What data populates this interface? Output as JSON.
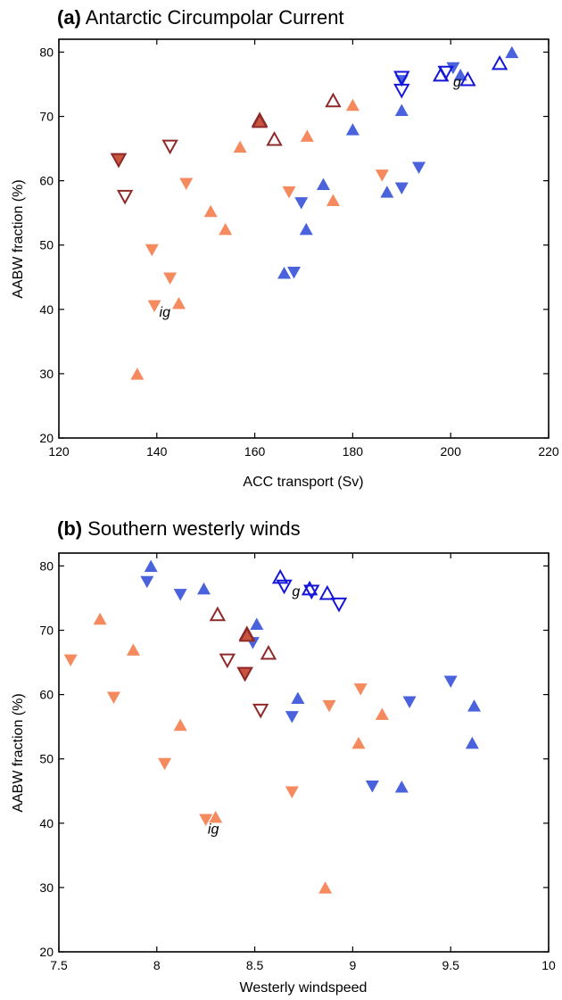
{
  "colors": {
    "orange": "#f58a5f",
    "blue_filled": "#4a63dc",
    "blue_open": "#1515d8",
    "darkred": "#8f2a2a",
    "darkred_fill": "#c8553e"
  },
  "chart_data": [
    {
      "type": "scatter",
      "panel_label": "(a)",
      "title": "Antarctic Circumpolar Current",
      "xlabel": "ACC transport (Sv)",
      "ylabel": "AABW fraction (%)",
      "xlim": [
        120,
        220
      ],
      "ylim": [
        20,
        82
      ],
      "xticks": [
        "120",
        "140",
        "160",
        "180",
        "200",
        "220"
      ],
      "yticks": [
        "20",
        "30",
        "40",
        "50",
        "60",
        "70",
        "80"
      ],
      "grid": false,
      "annotations": [
        {
          "text": "ig",
          "x": 140.5,
          "y": 39.7
        },
        {
          "text": "g",
          "x": 200.5,
          "y": 75.5
        }
      ],
      "series": [
        {
          "marker": "triangle-up",
          "fill": "orange",
          "points": [
            [
              136,
              30
            ],
            [
              144.5,
              41
            ],
            [
              151,
              55.3
            ],
            [
              154,
              52.5
            ],
            [
              157,
              65.3
            ],
            [
              170.7,
              67
            ],
            [
              176,
              57
            ],
            [
              180,
              71.8
            ]
          ]
        },
        {
          "marker": "triangle-down",
          "fill": "orange",
          "points": [
            [
              139,
              49.2
            ],
            [
              139.5,
              40.5
            ],
            [
              142.7,
              44.8
            ],
            [
              146,
              59.5
            ],
            [
              167,
              58.2
            ],
            [
              186,
              60.8
            ]
          ]
        },
        {
          "marker": "triangle-up",
          "fill": "blue_filled",
          "points": [
            [
              166,
              45.7
            ],
            [
              170.5,
              52.5
            ],
            [
              174,
              59.5
            ],
            [
              180,
              68
            ],
            [
              187,
              58.3
            ],
            [
              190,
              71
            ],
            [
              202,
              76.5
            ],
            [
              212.5,
              80
            ]
          ]
        },
        {
          "marker": "triangle-down",
          "fill": "blue_filled",
          "points": [
            [
              168,
              45.7
            ],
            [
              169.5,
              56.5
            ],
            [
              190,
              58.8
            ],
            [
              193.5,
              62
            ],
            [
              190,
              75.5
            ],
            [
              200.5,
              77.5
            ]
          ]
        },
        {
          "marker": "triangle-up",
          "fill": "none",
          "stroke": "blue_open",
          "points": [
            [
              198,
              76.5
            ],
            [
              203.5,
              75.8
            ],
            [
              210,
              78.3
            ]
          ]
        },
        {
          "marker": "triangle-down",
          "fill": "none",
          "stroke": "blue_open",
          "points": [
            [
              190,
              76
            ],
            [
              190,
              74
            ],
            [
              199,
              76.8
            ]
          ]
        },
        {
          "marker": "triangle-up",
          "fill": "none",
          "stroke": "darkred",
          "points": [
            [
              161,
              69.5
            ],
            [
              164,
              66.5
            ],
            [
              176,
              72.5
            ]
          ]
        },
        {
          "marker": "triangle-down",
          "fill": "none",
          "stroke": "darkred",
          "points": [
            [
              132.2,
              63.2
            ],
            [
              133.5,
              57.5
            ],
            [
              142.7,
              65.3
            ]
          ]
        },
        {
          "marker": "triangle-up",
          "fill": "darkred_fill",
          "stroke": "darkred",
          "points": [
            [
              161,
              69.3
            ]
          ]
        },
        {
          "marker": "triangle-down",
          "fill": "darkred_fill",
          "stroke": "darkred",
          "points": [
            [
              132.2,
              63.2
            ]
          ]
        }
      ]
    },
    {
      "type": "scatter",
      "panel_label": "(b)",
      "title": "Southern westerly winds",
      "xlabel": "Westerly windspeed",
      "ylabel": "AABW fraction (%)",
      "xlim": [
        7.5,
        10
      ],
      "ylim": [
        20,
        82
      ],
      "xticks": [
        "7.5",
        "8",
        "8.5",
        "9",
        "9.5",
        "10"
      ],
      "yticks": [
        "20",
        "30",
        "40",
        "50",
        "60",
        "70",
        "80"
      ],
      "grid": false,
      "annotations": [
        {
          "text": "ig",
          "x": 8.26,
          "y": 39.2
        },
        {
          "text": "g",
          "x": 8.69,
          "y": 76.2
        }
      ],
      "series": [
        {
          "marker": "triangle-up",
          "fill": "orange",
          "points": [
            [
              7.71,
              71.8
            ],
            [
              7.88,
              67
            ],
            [
              8.12,
              55.3
            ],
            [
              8.3,
              41
            ],
            [
              8.86,
              30
            ],
            [
              9.03,
              52.5
            ],
            [
              9.15,
              57
            ]
          ]
        },
        {
          "marker": "triangle-down",
          "fill": "orange",
          "points": [
            [
              7.56,
              65.3
            ],
            [
              7.78,
              59.5
            ],
            [
              8.04,
              49.2
            ],
            [
              8.25,
              40.5
            ],
            [
              8.69,
              44.8
            ],
            [
              8.88,
              58.2
            ],
            [
              9.04,
              60.8
            ]
          ]
        },
        {
          "marker": "triangle-up",
          "fill": "blue_filled",
          "points": [
            [
              7.97,
              80
            ],
            [
              8.24,
              76.5
            ],
            [
              8.51,
              71
            ],
            [
              8.72,
              59.5
            ],
            [
              9.25,
              45.7
            ],
            [
              9.61,
              52.5
            ],
            [
              9.62,
              58.3
            ]
          ]
        },
        {
          "marker": "triangle-down",
          "fill": "blue_filled",
          "points": [
            [
              7.95,
              77.5
            ],
            [
              8.12,
              75.5
            ],
            [
              8.49,
              68
            ],
            [
              8.69,
              56.5
            ],
            [
              9.1,
              45.7
            ],
            [
              9.29,
              58.8
            ],
            [
              9.5,
              62
            ]
          ]
        },
        {
          "marker": "triangle-up",
          "fill": "none",
          "stroke": "blue_open",
          "points": [
            [
              8.63,
              78.3
            ],
            [
              8.78,
              76.5
            ],
            [
              8.87,
              75.8
            ]
          ]
        },
        {
          "marker": "triangle-down",
          "fill": "none",
          "stroke": "blue_open",
          "points": [
            [
              8.65,
              76.8
            ],
            [
              8.79,
              76
            ],
            [
              8.93,
              74
            ]
          ]
        },
        {
          "marker": "triangle-up",
          "fill": "none",
          "stroke": "darkred",
          "points": [
            [
              8.31,
              72.5
            ],
            [
              8.46,
              69.5
            ],
            [
              8.57,
              66.5
            ]
          ]
        },
        {
          "marker": "triangle-down",
          "fill": "none",
          "stroke": "darkred",
          "points": [
            [
              8.36,
              65.3
            ],
            [
              8.45,
              63.2
            ],
            [
              8.53,
              57.5
            ]
          ]
        },
        {
          "marker": "triangle-up",
          "fill": "darkred_fill",
          "stroke": "darkred",
          "points": [
            [
              8.46,
              69.3
            ]
          ]
        },
        {
          "marker": "triangle-down",
          "fill": "darkred_fill",
          "stroke": "darkred",
          "points": [
            [
              8.45,
              63.2
            ]
          ]
        }
      ]
    }
  ]
}
